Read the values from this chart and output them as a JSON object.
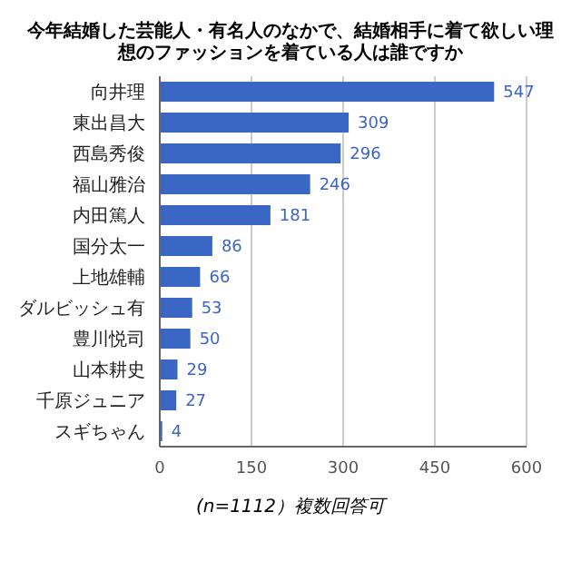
{
  "chart_data": {
    "type": "bar",
    "orientation": "horizontal",
    "title": "今年結婚した芸能人・有名人のなかで、結婚相手に着て欲しい理想のファッションを着ている人は誰ですか",
    "categories": [
      "向井理",
      "東出昌大",
      "西島秀俊",
      "福山雅治",
      "内田篤人",
      "国分太一",
      "上地雄輔",
      "ダルビッシュ有",
      "豊川悦司",
      "山本耕史",
      "千原ジュニア",
      "スギちゃん"
    ],
    "values": [
      547,
      309,
      296,
      246,
      181,
      86,
      66,
      53,
      50,
      29,
      27,
      4
    ],
    "color": "#3a66c4",
    "xlim": [
      0,
      600
    ],
    "xticks": [
      0,
      150,
      300,
      450,
      600
    ],
    "grid": "x",
    "data_labels": true,
    "legend": false,
    "annotations": [
      "(n=1112）複数回答可"
    ]
  }
}
